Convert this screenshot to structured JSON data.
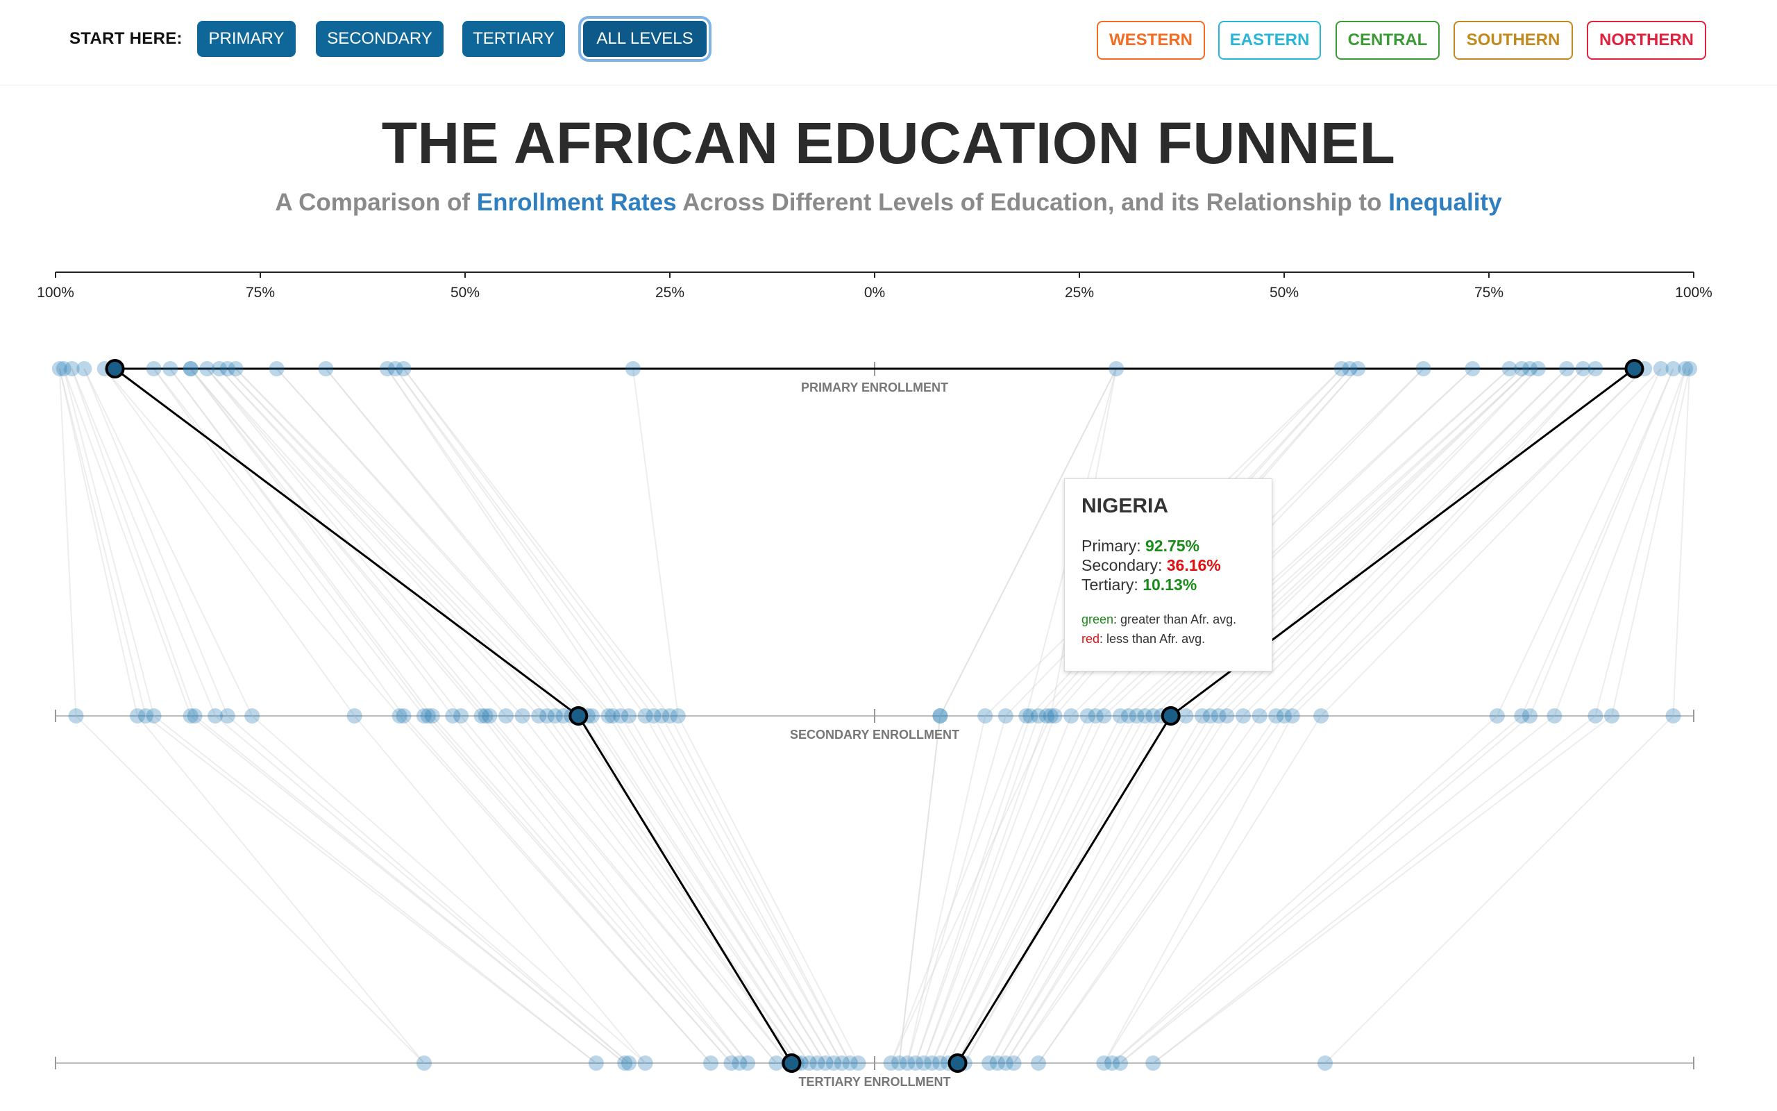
{
  "controls": {
    "start_label": "START HERE:",
    "level_buttons": [
      "PRIMARY",
      "SECONDARY",
      "TERTIARY",
      "ALL LEVELS"
    ],
    "active_level": "ALL LEVELS",
    "region_buttons": [
      {
        "label": "WESTERN",
        "color": "#f36c21"
      },
      {
        "label": "EASTERN",
        "color": "#29b6d6"
      },
      {
        "label": "CENTRAL",
        "color": "#3a9a34"
      },
      {
        "label": "SOUTHERN",
        "color": "#c08a1f"
      },
      {
        "label": "NORTHERN",
        "color": "#e0203c"
      }
    ]
  },
  "header": {
    "title": "THE AFRICAN EDUCATION FUNNEL",
    "subtitle_parts": [
      {
        "text": "A Comparison of ",
        "highlight": false
      },
      {
        "text": "Enrollment Rates",
        "highlight": true
      },
      {
        "text": " Across Different Levels of Education, and its Relationship to ",
        "highlight": false
      },
      {
        "text": "Inequality",
        "highlight": true
      }
    ]
  },
  "colors": {
    "button_blue": "#0e6699",
    "point": "#1f77b4",
    "highlight_line": "#000000",
    "above_avg": "#1a8a1a",
    "below_avg": "#e01010",
    "link_text": "#2f7fc0"
  },
  "chart_data": {
    "type": "scatter",
    "description_axis": "mirrored percentage axis (left and right halves both run 0% at center to 100% at edges)",
    "axis_ticks": [
      "100%",
      "75%",
      "50%",
      "25%",
      "0%",
      "25%",
      "50%",
      "75%",
      "100%"
    ],
    "xlim": [
      0,
      100
    ],
    "rows": [
      {
        "key": "primary",
        "label": "PRIMARY ENROLLMENT"
      },
      {
        "key": "secondary",
        "label": "SECONDARY ENROLLMENT"
      },
      {
        "key": "tertiary",
        "label": "TERTIARY ENROLLMENT"
      }
    ],
    "points": {
      "primary": [
        99.5,
        99,
        98,
        96.5,
        94,
        88,
        86,
        83.5,
        83.5,
        81.5,
        80,
        79,
        78,
        73,
        67,
        59.5,
        58.5,
        57.5,
        29.5,
        29.5,
        57,
        58,
        59,
        67,
        73,
        77.5,
        79,
        80,
        81,
        84.5,
        86.5,
        88,
        94,
        96,
        97.5,
        99,
        99.5
      ],
      "secondary": [
        97.5,
        90,
        89,
        88,
        83.5,
        83,
        80.5,
        79,
        76,
        63.5,
        58,
        57.5,
        55,
        54.5,
        54,
        51.5,
        50.5,
        48,
        47.5,
        47,
        45,
        43,
        41,
        40,
        39,
        38,
        37,
        36,
        35,
        34.5,
        32.5,
        32,
        31,
        30,
        28,
        27,
        26,
        25,
        24,
        21.5,
        18.5,
        8,
        8,
        13.5,
        16,
        19,
        20,
        21,
        22,
        24,
        26,
        27,
        28,
        30,
        31,
        32,
        33,
        34,
        35,
        36,
        38,
        40,
        41,
        42,
        43,
        45,
        47,
        49,
        50,
        51,
        54.5,
        76,
        79,
        80,
        83,
        88,
        90,
        97.5
      ],
      "tertiary": [
        55,
        34,
        30.5,
        30,
        28,
        20,
        17.5,
        16.5,
        15.5,
        12,
        10.5,
        9.5,
        9,
        8,
        7,
        6,
        5,
        4,
        3,
        2,
        2,
        3,
        4,
        5,
        6,
        7,
        8,
        9,
        10,
        11,
        14,
        15,
        16,
        17,
        20,
        28,
        29,
        30,
        34,
        55
      ]
    },
    "highlighted": [
      {
        "country": "Nigeria",
        "side": "right",
        "primary": 92.75,
        "secondary": 36.16,
        "tertiary": 10.13
      },
      {
        "side": "left",
        "primary": 92.75,
        "secondary": 36.16,
        "tertiary": 10.13
      }
    ]
  },
  "tooltip": {
    "title": "NIGERIA",
    "rows": [
      {
        "label": "Primary: ",
        "value": "92.75%",
        "status": "above"
      },
      {
        "label": "Secondary: ",
        "value": "36.16%",
        "status": "below"
      },
      {
        "label": "Tertiary: ",
        "value": "10.13%",
        "status": "above"
      }
    ],
    "legend_green_word": "green",
    "legend_green_text": ": greater than Afr. avg.",
    "legend_red_word": "red",
    "legend_red_text": ": less than Afr. avg."
  }
}
